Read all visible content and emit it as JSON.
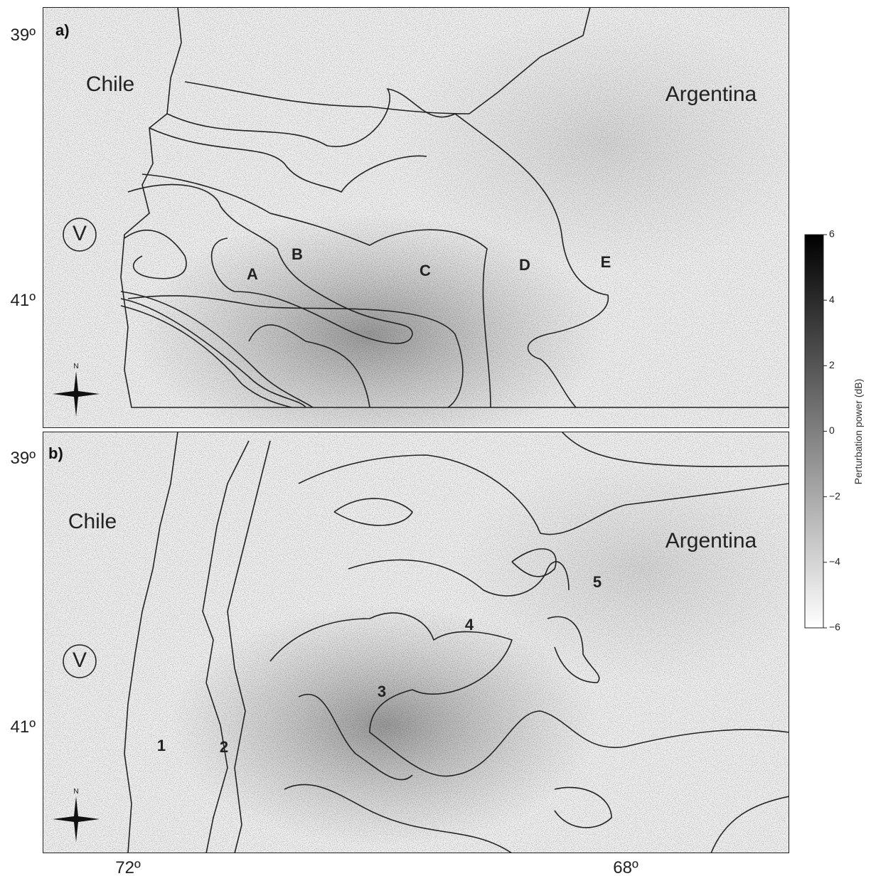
{
  "panels": [
    {
      "label": "a)",
      "country_labels": [
        "Chile",
        "Argentina"
      ],
      "vent": "V",
      "zones": [
        "A",
        "B",
        "C",
        "D",
        "E"
      ],
      "lat_labels": [
        "39º",
        "41º"
      ]
    },
    {
      "label": "b)",
      "country_labels": [
        "Chile",
        "Argentina"
      ],
      "vent": "V",
      "zones": [
        "1",
        "2",
        "3",
        "4",
        "5"
      ],
      "lat_labels": [
        "39º",
        "41º"
      ]
    }
  ],
  "lon_labels": [
    "72º",
    "68º"
  ],
  "colorbar": {
    "label": "Perturbation power (dB)",
    "range": [
      -6,
      6
    ],
    "ticks": [
      6,
      4,
      2,
      0,
      {
        "value": -2,
        "label": "−2"
      },
      {
        "value": -4,
        "label": "−4"
      },
      {
        "value": -6,
        "label": "−6"
      }
    ]
  }
}
